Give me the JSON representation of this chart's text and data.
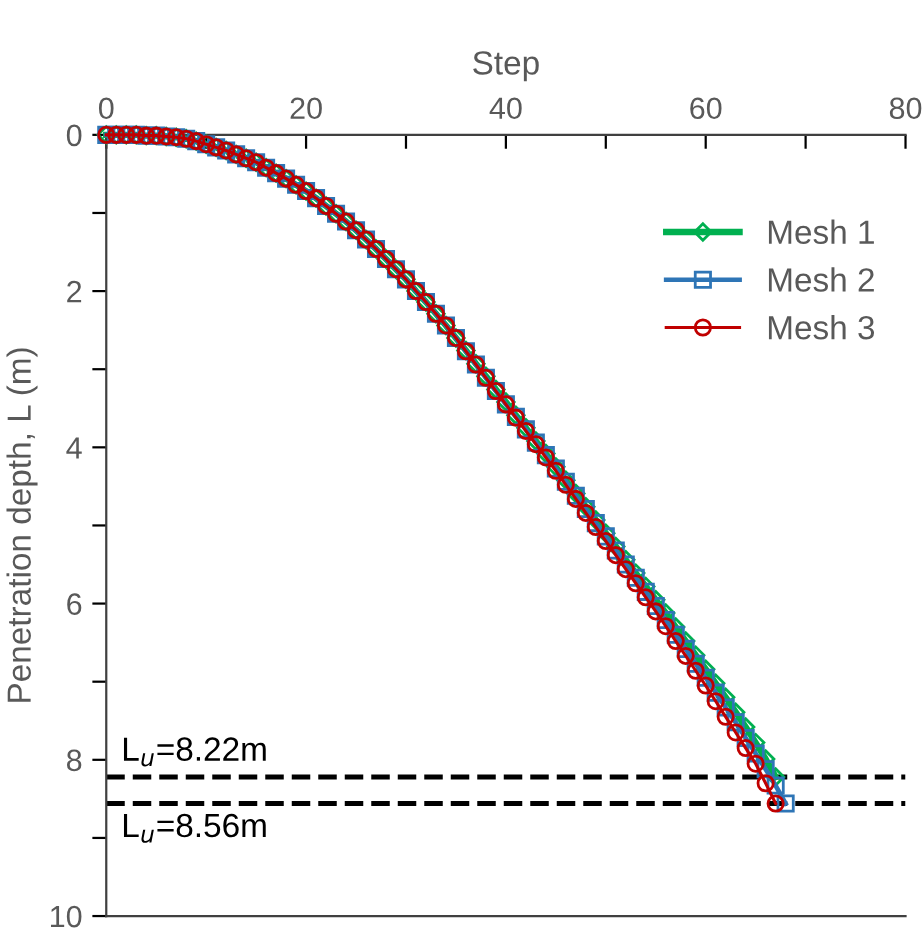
{
  "chart_data": {
    "type": "line",
    "xlabel": "Step",
    "ylabel": "Penetration depth, L (m)",
    "xlim": [
      0,
      80
    ],
    "xticks": [
      0,
      {
        "value": 10,
        "label": null
      },
      20,
      {
        "value": 30,
        "label": null
      },
      40,
      {
        "value": 50,
        "label": null
      },
      60,
      {
        "value": 70,
        "label": null
      },
      80
    ],
    "ylim": [
      10,
      0
    ],
    "yticks": [
      0,
      {
        "value": 1,
        "label": null
      },
      2,
      {
        "value": 3,
        "label": null
      },
      4,
      {
        "value": 5,
        "label": null
      },
      6,
      {
        "value": 7,
        "label": null
      },
      8,
      {
        "value": 9,
        "label": null
      },
      10
    ],
    "grid": false,
    "legend": "top right",
    "line_style": "solid",
    "series": [
      {
        "name": "Mesh 1",
        "color": "#00b050",
        "marker": "diamond",
        "x": [
          0,
          1,
          2,
          3,
          4,
          5,
          6,
          7,
          8,
          9,
          10,
          11,
          12,
          13,
          14,
          15,
          16,
          17,
          18,
          19,
          20,
          21,
          22,
          23,
          24,
          25,
          26,
          27,
          28,
          29,
          30,
          31,
          32,
          33,
          34,
          35,
          36,
          37,
          38,
          39,
          40,
          41,
          42,
          43,
          44,
          45,
          46,
          47,
          48,
          49,
          50,
          51,
          52,
          53,
          54,
          55,
          56,
          57,
          58,
          59,
          60,
          61,
          62,
          63,
          64,
          65,
          66,
          67
        ],
        "values": [
          0,
          0,
          0,
          0,
          0.01,
          0.01,
          0.02,
          0.03,
          0.05,
          0.08,
          0.12,
          0.16,
          0.2,
          0.25,
          0.3,
          0.35,
          0.42,
          0.49,
          0.56,
          0.64,
          0.72,
          0.81,
          0.91,
          1.01,
          1.11,
          1.22,
          1.34,
          1.46,
          1.59,
          1.72,
          1.85,
          2.0,
          2.14,
          2.29,
          2.44,
          2.6,
          2.76,
          2.93,
          3.09,
          3.26,
          3.42,
          3.59,
          3.75,
          3.92,
          4.08,
          4.25,
          4.42,
          4.59,
          4.76,
          4.93,
          5.1,
          5.27,
          5.44,
          5.61,
          5.78,
          5.95,
          6.12,
          6.3,
          6.48,
          6.66,
          6.84,
          7.02,
          7.2,
          7.39,
          7.58,
          7.78,
          7.99,
          8.22
        ]
      },
      {
        "name": "Mesh 2",
        "color": "#2e75b6",
        "marker": "square",
        "x": [
          0,
          1,
          2,
          3,
          4,
          5,
          6,
          7,
          8,
          9,
          10,
          11,
          12,
          13,
          14,
          15,
          16,
          17,
          18,
          19,
          20,
          21,
          22,
          23,
          24,
          25,
          26,
          27,
          28,
          29,
          30,
          31,
          32,
          33,
          34,
          35,
          36,
          37,
          38,
          39,
          40,
          41,
          42,
          43,
          44,
          45,
          46,
          47,
          48,
          49,
          50,
          51,
          52,
          53,
          54,
          55,
          56,
          57,
          58,
          59,
          60,
          61,
          62,
          63,
          64,
          65,
          66,
          67,
          68
        ],
        "values": [
          0,
          0,
          0,
          0,
          0.01,
          0.01,
          0.02,
          0.03,
          0.05,
          0.08,
          0.12,
          0.16,
          0.2,
          0.25,
          0.3,
          0.35,
          0.42,
          0.49,
          0.56,
          0.64,
          0.72,
          0.81,
          0.91,
          1.01,
          1.11,
          1.22,
          1.34,
          1.46,
          1.59,
          1.72,
          1.85,
          2.0,
          2.14,
          2.29,
          2.44,
          2.6,
          2.77,
          2.94,
          3.11,
          3.28,
          3.45,
          3.61,
          3.77,
          3.94,
          4.1,
          4.27,
          4.44,
          4.62,
          4.79,
          4.97,
          5.14,
          5.32,
          5.5,
          5.67,
          5.85,
          6.03,
          6.21,
          6.4,
          6.58,
          6.77,
          6.95,
          7.14,
          7.33,
          7.52,
          7.72,
          7.92,
          8.12,
          8.33,
          8.56
        ]
      },
      {
        "name": "Mesh 3",
        "color": "#c00000",
        "marker": "circle",
        "x": [
          0,
          1,
          2,
          3,
          4,
          5,
          6,
          7,
          8,
          9,
          10,
          11,
          12,
          13,
          14,
          15,
          16,
          17,
          18,
          19,
          20,
          21,
          22,
          23,
          24,
          25,
          26,
          27,
          28,
          29,
          30,
          31,
          32,
          33,
          34,
          35,
          36,
          37,
          38,
          39,
          40,
          41,
          42,
          43,
          44,
          45,
          46,
          47,
          48,
          49,
          50,
          51,
          52,
          53,
          54,
          55,
          56,
          57,
          58,
          59,
          60,
          61,
          62,
          63,
          64,
          65,
          66,
          67
        ],
        "values": [
          0,
          0,
          0,
          0,
          0.01,
          0.01,
          0.02,
          0.03,
          0.05,
          0.08,
          0.12,
          0.16,
          0.2,
          0.25,
          0.3,
          0.35,
          0.42,
          0.49,
          0.56,
          0.64,
          0.72,
          0.81,
          0.91,
          1.01,
          1.11,
          1.22,
          1.34,
          1.46,
          1.59,
          1.72,
          1.85,
          2.0,
          2.14,
          2.29,
          2.44,
          2.6,
          2.77,
          2.94,
          3.11,
          3.28,
          3.45,
          3.62,
          3.79,
          3.96,
          4.13,
          4.3,
          4.48,
          4.66,
          4.84,
          5.02,
          5.2,
          5.38,
          5.56,
          5.74,
          5.92,
          6.1,
          6.29,
          6.48,
          6.67,
          6.86,
          7.05,
          7.25,
          7.45,
          7.65,
          7.85,
          8.05,
          8.3,
          8.56
        ]
      }
    ],
    "ref_lines": [
      {
        "axis": "y",
        "value": 8.22,
        "label": "L$_{u}$=8.22m",
        "color": "#000000",
        "line_style": "dashed"
      },
      {
        "axis": "y",
        "value": 8.56,
        "label": "L$_{u}$=8.56m",
        "color": "#000000",
        "line_style": "dashed"
      }
    ]
  }
}
